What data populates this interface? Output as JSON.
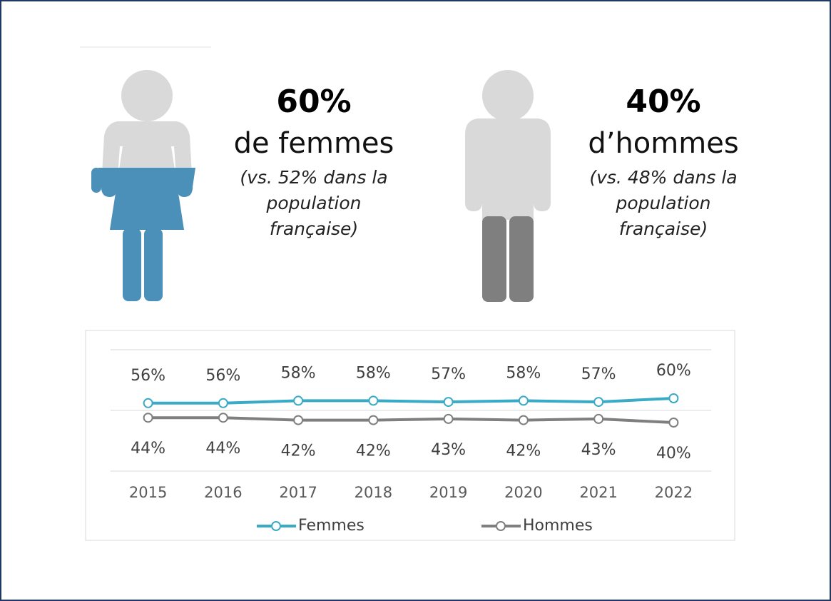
{
  "headline_women": {
    "value": "60%",
    "label": "de femmes",
    "note": [
      "(vs. 52% dans la",
      "population",
      "française)"
    ]
  },
  "headline_men": {
    "value": "40%",
    "label": "d’hommes",
    "note": [
      "(vs. 48% dans la",
      "population",
      "française)"
    ]
  },
  "chart_data": {
    "type": "line",
    "categories": [
      "2015",
      "2016",
      "2017",
      "2018",
      "2019",
      "2020",
      "2021",
      "2022"
    ],
    "series": [
      {
        "name": "Femmes",
        "color": "#3aabc7",
        "values": [
          56,
          56,
          58,
          58,
          57,
          58,
          57,
          60
        ],
        "value_labels": [
          "56%",
          "56%",
          "58%",
          "58%",
          "57%",
          "58%",
          "57%",
          "60%"
        ]
      },
      {
        "name": "Hommes",
        "color": "#7f7f7f",
        "values": [
          44,
          44,
          42,
          42,
          43,
          42,
          43,
          40
        ],
        "value_labels": [
          "44%",
          "44%",
          "42%",
          "42%",
          "43%",
          "42%",
          "43%",
          "40%"
        ]
      }
    ],
    "ylim": [
      0,
      100
    ],
    "yticks": [
      0,
      50,
      100
    ],
    "grid": true,
    "legend": "bottom"
  }
}
